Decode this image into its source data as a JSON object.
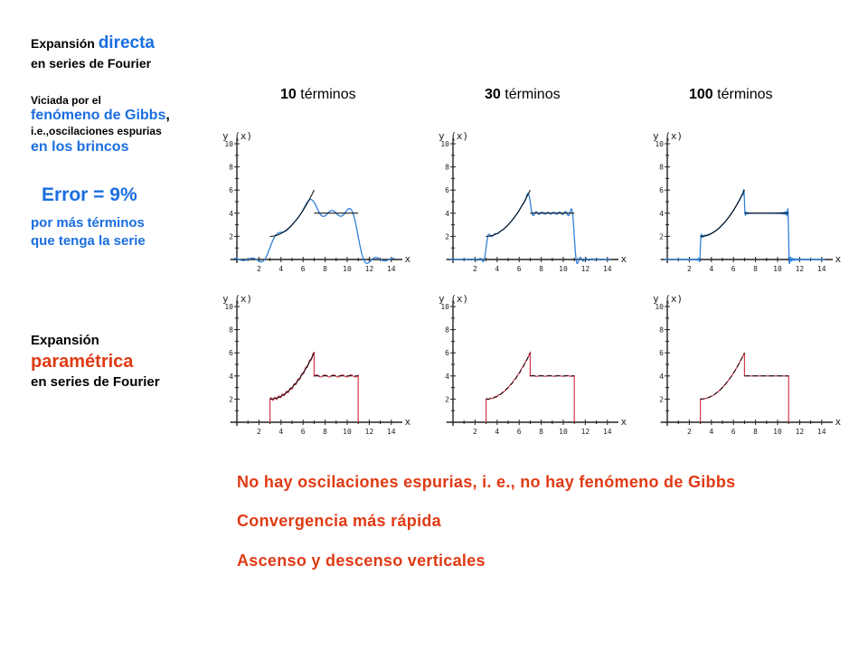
{
  "left_text": {
    "direct_prefix": "Expansión ",
    "direct_word": "directa",
    "direct_line2": "en series de Fourier",
    "viciada": "Viciada por el",
    "gibbs_phrase": "fenómeno de Gibbs",
    "gibbs_comma": ",",
    "ie_line": "i.e.,oscilaciones espurias",
    "brincos": "en los brincos",
    "error": "Error = 9%",
    "mas_terminos_1": "por más términos",
    "mas_terminos_2": "que tenga la serie",
    "param_line1": "Expansión",
    "param_word": "paramétrica",
    "param_line2": "en series de Fourier"
  },
  "column_headers": [
    {
      "num": "10",
      "word": " términos"
    },
    {
      "num": "30",
      "word": " términos"
    },
    {
      "num": "100",
      "word": " términos"
    }
  ],
  "conclusions": [
    "No hay oscilaciones espurias, i. e., no hay fenómeno de Gibbs",
    "Convergencia más rápida",
    "Ascenso y descenso verticales"
  ],
  "chart_data": [
    {
      "type": "line",
      "row": "directa",
      "terms": 10,
      "ylabel": "y (x)",
      "xlabel": "x",
      "xlim": [
        0,
        15
      ],
      "ylim": [
        0,
        10
      ],
      "xticks": [
        2,
        4,
        6,
        8,
        10,
        12,
        14
      ],
      "yticks": [
        2,
        4,
        6,
        8,
        10
      ],
      "series": [
        {
          "role": "exact",
          "color": "#000000",
          "piece": "y=2+0.25(x-3)^2 on [3,7]; y=4 on [7,11]"
        },
        {
          "role": "fourier",
          "color": "#2f80d8",
          "method": "directa",
          "n": 10
        }
      ]
    },
    {
      "type": "line",
      "row": "directa",
      "terms": 30,
      "ylabel": "y (x)",
      "xlabel": "x",
      "xlim": [
        0,
        15
      ],
      "ylim": [
        0,
        10
      ],
      "xticks": [
        2,
        4,
        6,
        8,
        10,
        12,
        14
      ],
      "yticks": [
        2,
        4,
        6,
        8,
        10
      ],
      "series": [
        {
          "role": "exact",
          "color": "#000000"
        },
        {
          "role": "fourier",
          "color": "#2f80d8",
          "method": "directa",
          "n": 30
        }
      ]
    },
    {
      "type": "line",
      "row": "directa",
      "terms": 100,
      "ylabel": "y (x)",
      "xlabel": "x",
      "xlim": [
        0,
        15
      ],
      "ylim": [
        0,
        10
      ],
      "xticks": [
        2,
        4,
        6,
        8,
        10,
        12,
        14
      ],
      "yticks": [
        2,
        4,
        6,
        8,
        10
      ],
      "series": [
        {
          "role": "exact",
          "color": "#000000"
        },
        {
          "role": "fourier",
          "color": "#2f80d8",
          "method": "directa",
          "n": 100
        }
      ]
    },
    {
      "type": "line",
      "row": "parametrica",
      "terms": 10,
      "ylabel": "y (x)",
      "xlabel": "x",
      "xlim": [
        0,
        15
      ],
      "ylim": [
        0,
        10
      ],
      "xticks": [
        2,
        4,
        6,
        8,
        10,
        12,
        14
      ],
      "yticks": [
        2,
        4,
        6,
        8,
        10
      ],
      "series": [
        {
          "role": "exact",
          "color": "#000000"
        },
        {
          "role": "fourier",
          "color": "#d03a4a",
          "method": "parametrica",
          "n": 10
        }
      ]
    },
    {
      "type": "line",
      "row": "parametrica",
      "terms": 30,
      "ylabel": "y (x)",
      "xlabel": "x",
      "xlim": [
        0,
        15
      ],
      "ylim": [
        0,
        10
      ],
      "xticks": [
        2,
        4,
        6,
        8,
        10,
        12,
        14
      ],
      "yticks": [
        2,
        4,
        6,
        8,
        10
      ],
      "series": [
        {
          "role": "exact",
          "color": "#000000"
        },
        {
          "role": "fourier",
          "color": "#d03a4a",
          "method": "parametrica",
          "n": 30
        }
      ]
    },
    {
      "type": "line",
      "row": "parametrica",
      "terms": 100,
      "ylabel": "y (x)",
      "xlabel": "x",
      "xlim": [
        0,
        15
      ],
      "ylim": [
        0,
        10
      ],
      "xticks": [
        2,
        4,
        6,
        8,
        10,
        12,
        14
      ],
      "yticks": [
        2,
        4,
        6,
        8,
        10
      ],
      "series": [
        {
          "role": "exact",
          "color": "#000000"
        },
        {
          "role": "fourier",
          "color": "#d03a4a",
          "method": "parametrica",
          "n": 100
        }
      ]
    }
  ]
}
